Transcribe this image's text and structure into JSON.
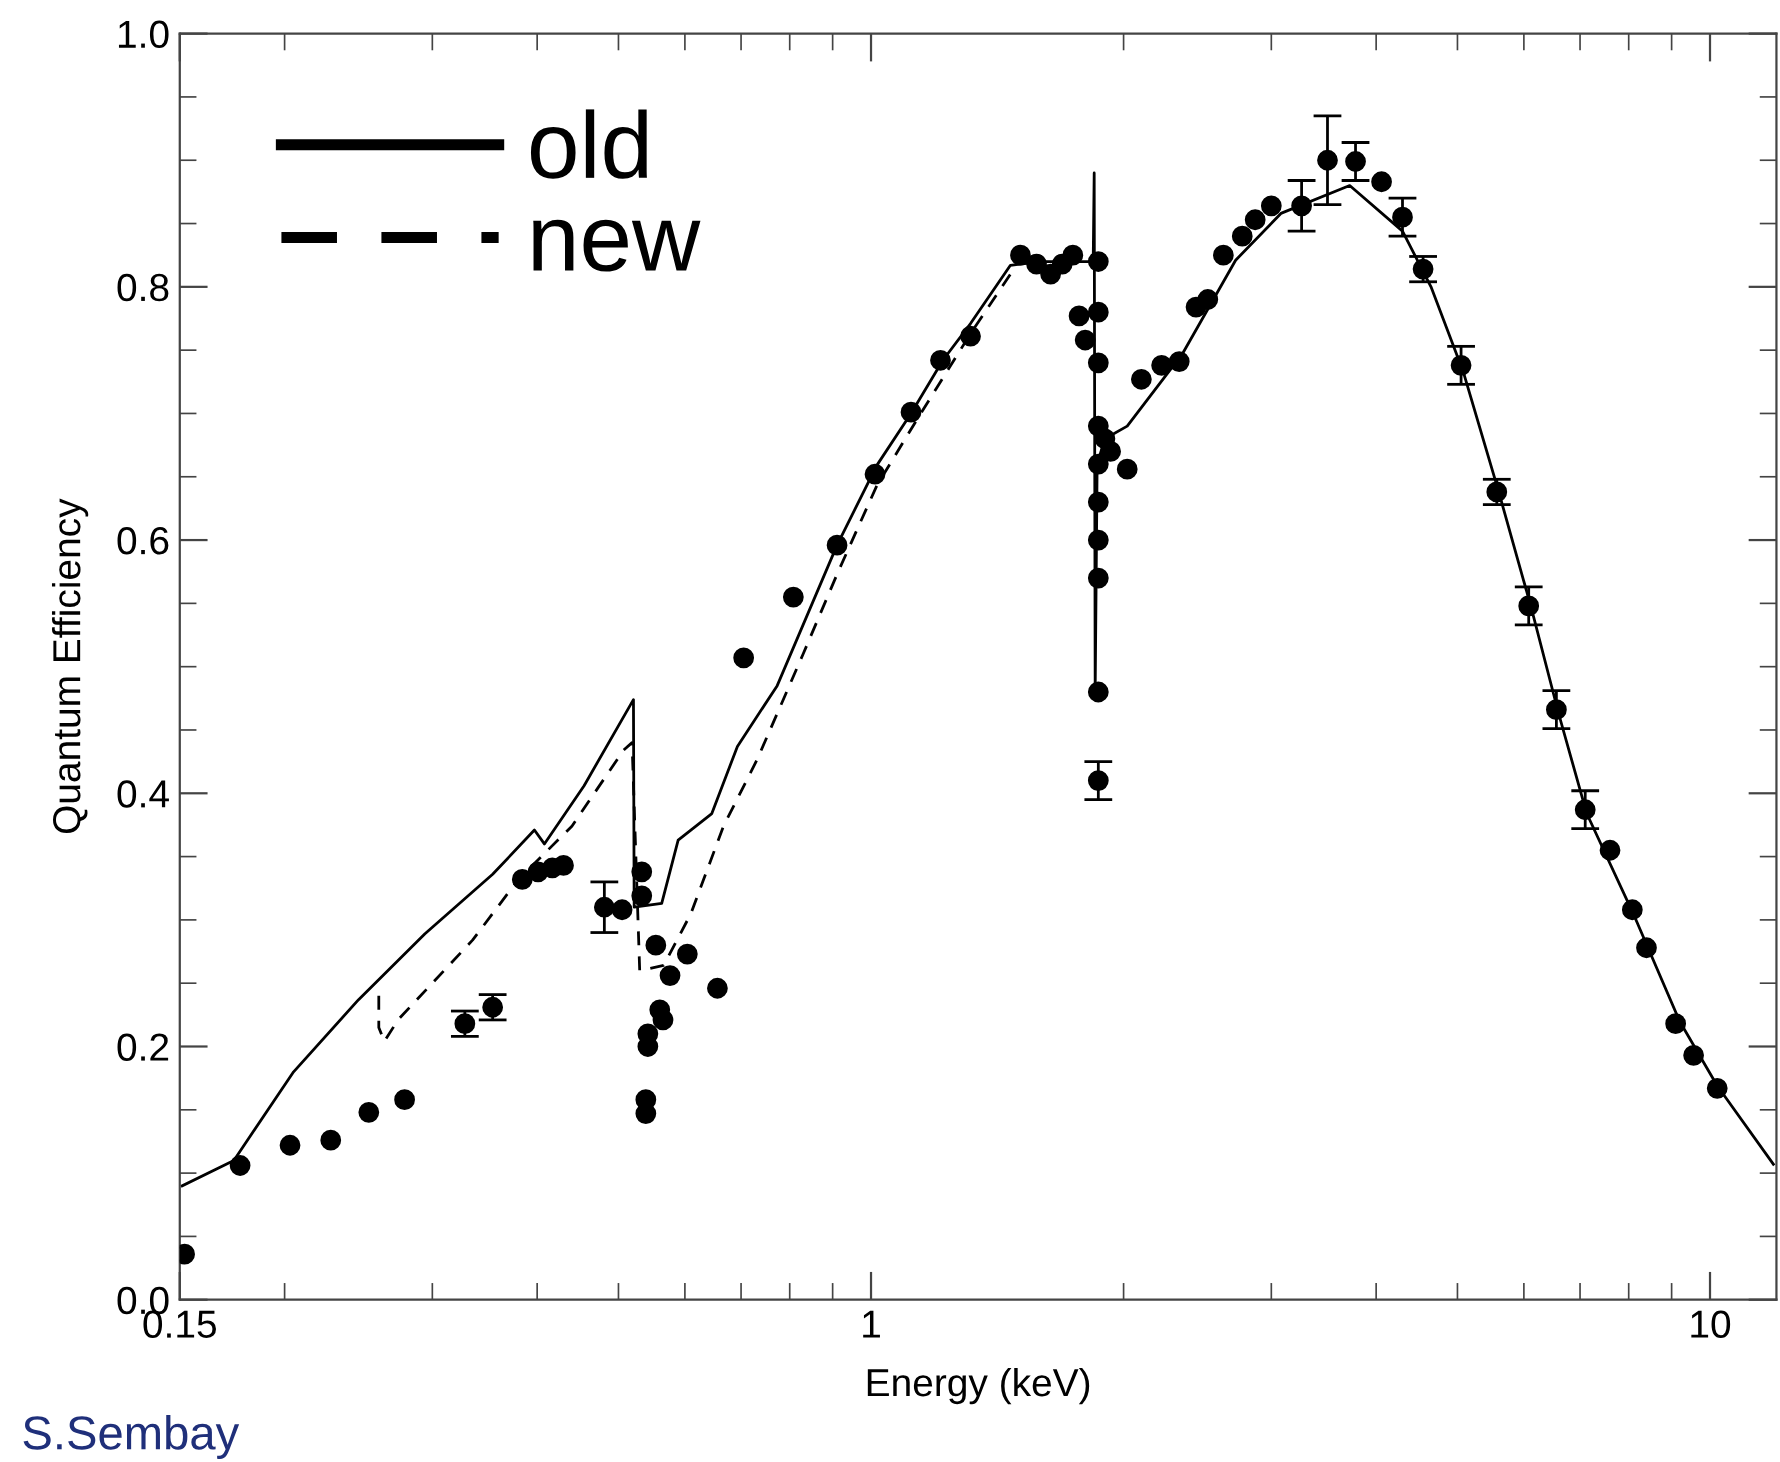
{
  "chart_data": {
    "type": "line",
    "xlabel": "Energy (keV)",
    "ylabel": "Quantum Efficiency",
    "log": "x",
    "xlim": [
      0.15,
      12
    ],
    "ylim": [
      0,
      1
    ],
    "xticks": [
      0.15,
      1,
      10
    ],
    "yticks": [
      {
        "value": 0,
        "label": "0.0"
      },
      {
        "value": 0.2,
        "label": "0.2"
      },
      {
        "value": 0.4,
        "label": "0.4"
      },
      {
        "value": 0.6,
        "label": "0.6"
      },
      {
        "value": 0.8,
        "label": "0.8"
      },
      {
        "value": 1,
        "label": "1.0"
      }
    ],
    "legend": "top left",
    "grid": false,
    "annotations": [
      "S.Sembay"
    ],
    "series": [
      {
        "name": "old",
        "line_style": "solid",
        "color": "#000000",
        "x": [
          0.151,
          0.174,
          0.205,
          0.245,
          0.294,
          0.354,
          0.397,
          0.408,
          0.455,
          0.521,
          0.522,
          0.563,
          0.589,
          0.646,
          0.693,
          0.773,
          0.911,
          1.016,
          1.116,
          1.218,
          1.314,
          1.466,
          1.6,
          1.75,
          1.84,
          1.845,
          1.85,
          1.86,
          1.9,
          2.02,
          2.35,
          2.72,
          3.08,
          3.72,
          4.3,
          4.65,
          5.08,
          5.6,
          6.12,
          6.6,
          7.13,
          8.1,
          9.2,
          10.2,
          11.9
        ],
        "values": [
          0.09,
          0.11,
          0.18,
          0.237,
          0.289,
          0.336,
          0.371,
          0.36,
          0.406,
          0.474,
          0.31,
          0.313,
          0.363,
          0.384,
          0.437,
          0.485,
          0.596,
          0.659,
          0.7,
          0.742,
          0.771,
          0.817,
          0.82,
          0.82,
          0.82,
          0.89,
          0.48,
          0.66,
          0.68,
          0.69,
          0.747,
          0.821,
          0.858,
          0.88,
          0.844,
          0.8,
          0.733,
          0.638,
          0.547,
          0.463,
          0.384,
          0.305,
          0.22,
          0.169,
          0.107
        ]
      },
      {
        "name": "new",
        "line_style": "dashed",
        "color": "#000000",
        "x": [
          0.259,
          0.259,
          0.263,
          0.273,
          0.335,
          0.38,
          0.44,
          0.507,
          0.519,
          0.53,
          0.566,
          0.61,
          0.667,
          0.732,
          0.83,
          0.911,
          1.016,
          1.134,
          1.314,
          1.466
        ],
        "values": [
          0.24,
          0.215,
          0.204,
          0.221,
          0.284,
          0.332,
          0.374,
          0.434,
          0.44,
          0.26,
          0.264,
          0.305,
          0.374,
          0.427,
          0.51,
          0.573,
          0.643,
          0.695,
          0.763,
          0.81
        ]
      },
      {
        "type": "scatter",
        "marker": "circle",
        "color": "#000000",
        "x": [
          0.152,
          0.177,
          0.203,
          0.227,
          0.252,
          0.278,
          0.328,
          0.354,
          0.384,
          0.401,
          0.417,
          0.43,
          0.481,
          0.505,
          0.533,
          0.533,
          0.539,
          0.539,
          0.542,
          0.542,
          0.554,
          0.56,
          0.565,
          0.576,
          0.604,
          0.656,
          0.705,
          0.808,
          0.911,
          1.011,
          1.116,
          1.21,
          1.314,
          1.507,
          1.575,
          1.637,
          1.69,
          1.74,
          1.77,
          1.8,
          1.866,
          1.866,
          1.866,
          1.866,
          1.866,
          1.866,
          1.866,
          1.866,
          1.866,
          1.866,
          1.9,
          1.93,
          2.02,
          2.1,
          2.22,
          2.33,
          2.44,
          2.52,
          2.63,
          2.77,
          2.87,
          3.0,
          3.26,
          3.5,
          3.78,
          4.06,
          4.3,
          4.55,
          5.05,
          5.57,
          6.08,
          6.56,
          7.1,
          7.6,
          8.08,
          8.4,
          9.1,
          9.56,
          10.2
        ],
        "values": [
          0.036,
          0.106,
          0.122,
          0.126,
          0.148,
          0.158,
          0.218,
          0.231,
          0.332,
          0.338,
          0.341,
          0.343,
          0.31,
          0.308,
          0.338,
          0.319,
          0.158,
          0.147,
          0.2,
          0.21,
          0.28,
          0.229,
          0.221,
          0.256,
          0.273,
          0.246,
          0.507,
          0.555,
          0.596,
          0.652,
          0.701,
          0.742,
          0.761,
          0.825,
          0.818,
          0.81,
          0.818,
          0.825,
          0.777,
          0.758,
          0.82,
          0.78,
          0.74,
          0.69,
          0.66,
          0.63,
          0.6,
          0.57,
          0.48,
          0.41,
          0.68,
          0.67,
          0.656,
          0.727,
          0.738,
          0.741,
          0.784,
          0.79,
          0.825,
          0.84,
          0.853,
          0.864,
          0.864,
          0.9,
          0.899,
          0.883,
          0.855,
          0.814,
          0.738,
          0.638,
          0.548,
          0.466,
          0.387,
          0.355,
          0.308,
          0.278,
          0.218,
          0.193,
          0.167
        ],
        "errors": [
          null,
          null,
          null,
          null,
          null,
          null,
          0.01,
          0.01,
          null,
          null,
          null,
          null,
          0.02,
          null,
          null,
          null,
          null,
          null,
          null,
          null,
          null,
          null,
          null,
          null,
          null,
          null,
          null,
          null,
          null,
          null,
          null,
          null,
          null,
          null,
          null,
          null,
          null,
          null,
          null,
          null,
          null,
          null,
          null,
          null,
          null,
          null,
          null,
          null,
          null,
          0.015,
          null,
          null,
          null,
          null,
          null,
          null,
          null,
          null,
          null,
          null,
          null,
          null,
          0.02,
          0.035,
          0.015,
          null,
          0.015,
          0.01,
          0.015,
          0.01,
          0.015,
          0.015,
          0.015,
          null,
          null,
          null,
          null,
          null,
          null
        ]
      }
    ]
  }
}
